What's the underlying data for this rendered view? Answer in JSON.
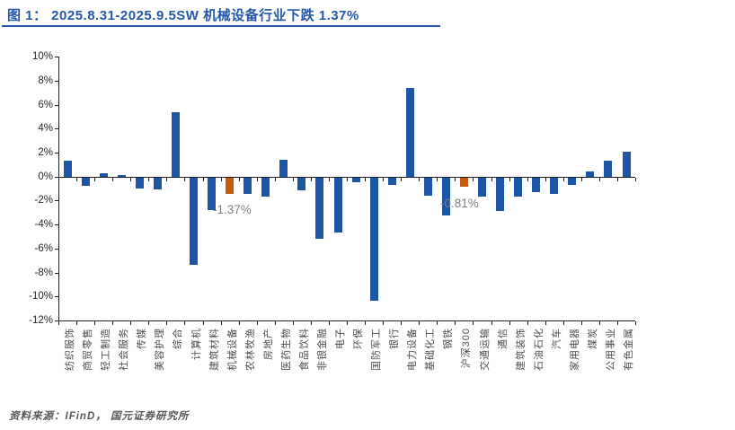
{
  "header": {
    "title": "图 1： 2025.8.31-2025.9.5SW 机械设备行业下跌 1.37%",
    "title_color": "#2457A7"
  },
  "footer": {
    "source": "资料来源：IFinD， 国元证券研究所"
  },
  "chart_data": {
    "type": "bar",
    "title": "图 1： 2025.8.31-2025.9.5SW 机械设备行业下跌 1.37%",
    "xlabel": "",
    "ylabel": "",
    "ylim": [
      -12,
      10
    ],
    "y_tick_labels": [
      "10%",
      "8%",
      "6%",
      "4%",
      "2%",
      "0%",
      "-2%",
      "-4%",
      "-6%",
      "-8%",
      "-10%",
      "-12%"
    ],
    "y_tick_values": [
      10,
      8,
      6,
      4,
      2,
      0,
      -2,
      -4,
      -6,
      -8,
      -10,
      -12
    ],
    "grid": false,
    "legend": "none",
    "bar_color": "#1D56A7",
    "highlight_color": "#C55A11",
    "highlight_indices": [
      9,
      22
    ],
    "categories": [
      "纺织服饰",
      "商贸零售",
      "轻工制造",
      "社会服务",
      "传媒",
      "美容护理",
      "综合",
      "计算机",
      "建筑材料",
      "机械设备",
      "农林牧渔",
      "房地产",
      "医药生物",
      "食品饮料",
      "非银金融",
      "电子",
      "环保",
      "国防军工",
      "银行",
      "电力设备",
      "基础化工",
      "钢铁",
      "沪深300",
      "交通运输",
      "通信",
      "建筑装饰",
      "石油石化",
      "汽车",
      "家用电器",
      "煤炭",
      "公用事业",
      "有色金属"
    ],
    "values": [
      1.3,
      -0.7,
      0.3,
      0.1,
      -0.9,
      -1.0,
      5.4,
      -7.3,
      -2.7,
      -1.37,
      -1.4,
      -1.6,
      1.4,
      -1.1,
      -5.1,
      -4.6,
      -0.4,
      -10.3,
      -0.6,
      7.4,
      -1.5,
      -3.2,
      -0.81,
      -1.6,
      -2.8,
      -1.6,
      -1.2,
      -1.4,
      -0.6,
      0.4,
      1.3,
      2.1
    ],
    "annotations": [
      {
        "text": "-1.37%",
        "x": 237,
        "y": 226
      },
      {
        "text": "-0.81%",
        "x": 490,
        "y": 219
      }
    ]
  }
}
